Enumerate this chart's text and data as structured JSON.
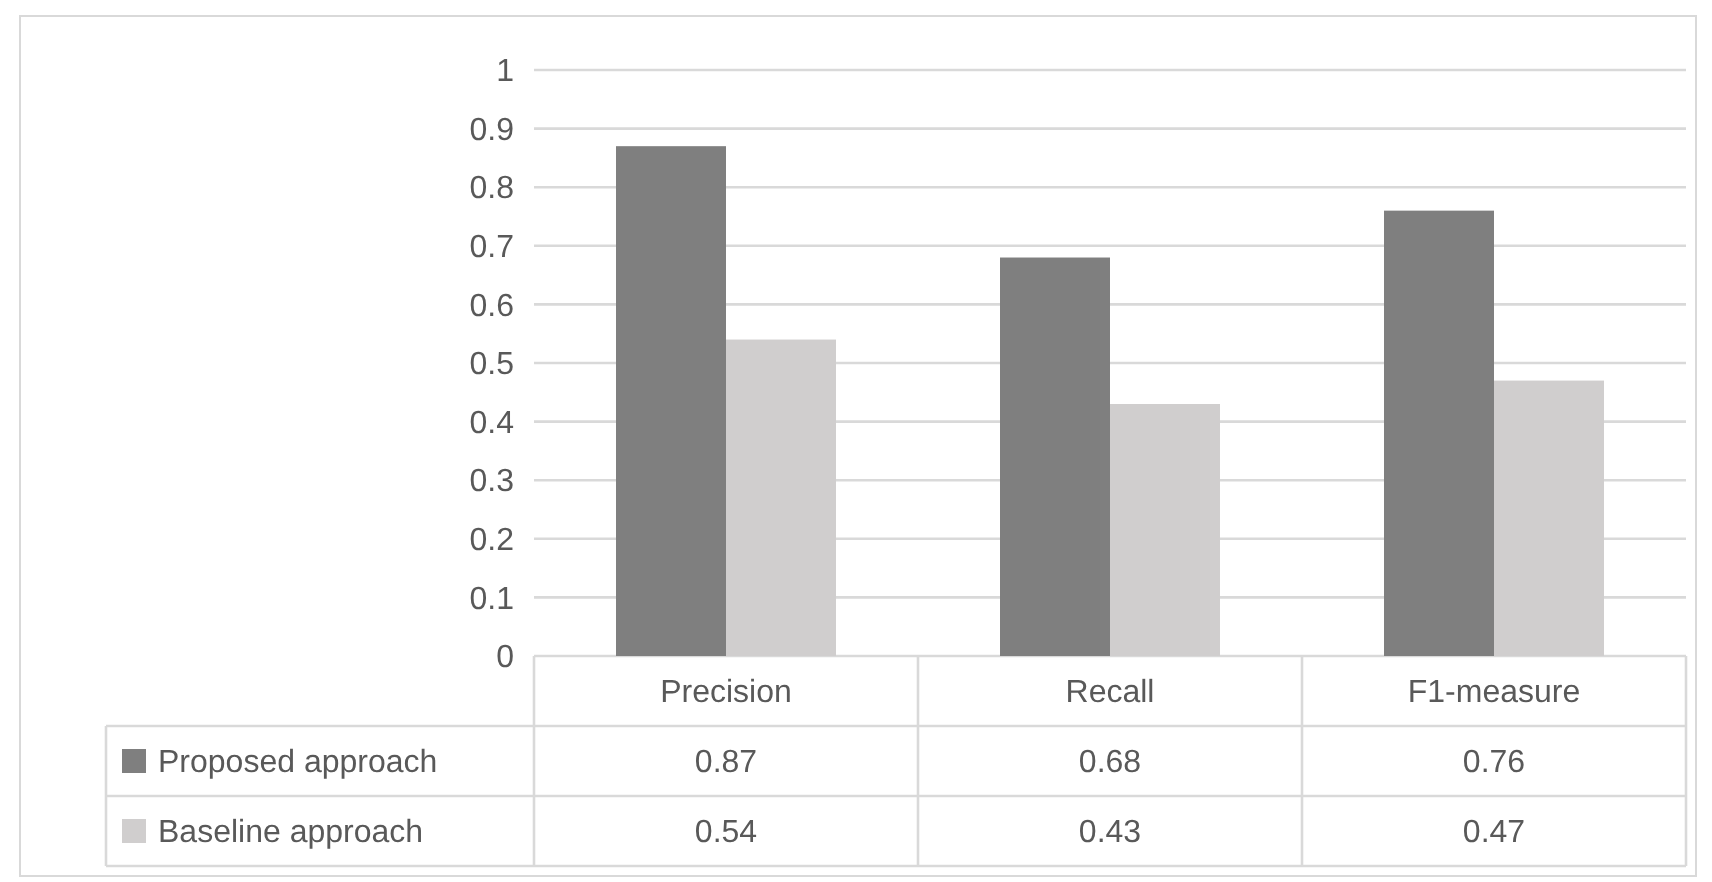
{
  "chart_data": {
    "type": "bar",
    "categories": [
      "Precision",
      "Recall",
      "F1-measure"
    ],
    "series": [
      {
        "name": "Proposed approach",
        "color": "#7f7f7f",
        "values": [
          0.87,
          0.68,
          0.76
        ]
      },
      {
        "name": "Baseline approach",
        "color": "#d0cece",
        "values": [
          0.54,
          0.43,
          0.47
        ]
      }
    ],
    "ylim": [
      0,
      1
    ],
    "yticks": [
      0,
      0.1,
      0.2,
      0.3,
      0.4,
      0.5,
      0.6,
      0.7,
      0.8,
      0.9,
      1
    ],
    "grid": "y",
    "legend": "bottom",
    "data_labels": true
  }
}
